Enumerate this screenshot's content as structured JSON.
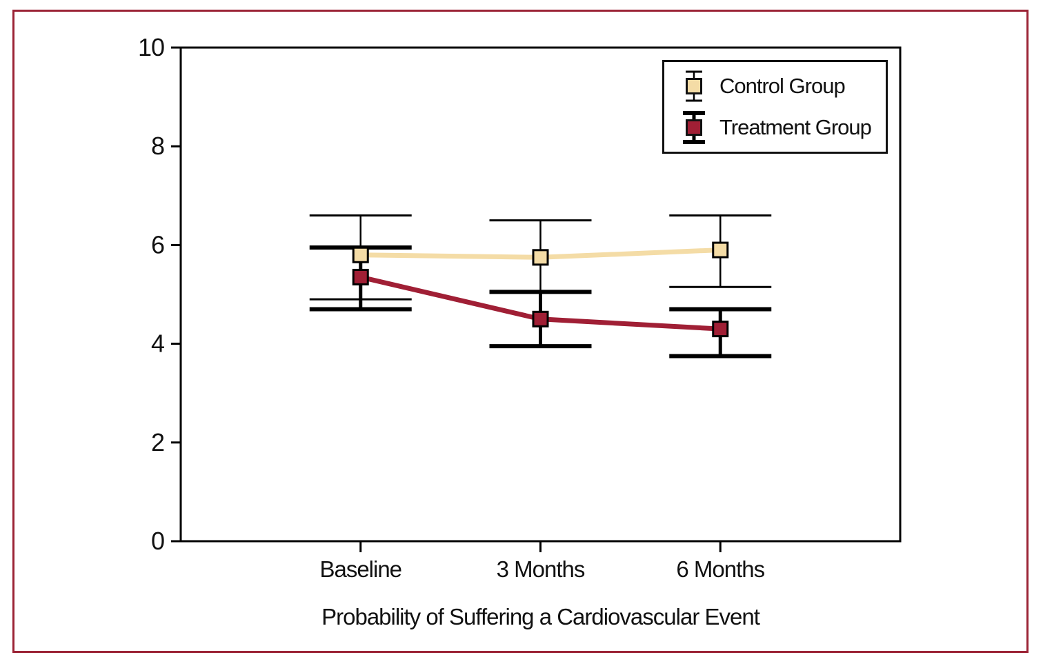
{
  "figure": {
    "frame_color": "#9B2335",
    "background_color": "#FFFFFF",
    "axis_color": "#000000"
  },
  "chart_data": {
    "type": "line",
    "title": "",
    "xlabel": "Probability of Suffering a Cardiovascular Event",
    "ylabel": "",
    "ylim": [
      0,
      10
    ],
    "yticks": [
      0,
      2,
      4,
      6,
      8,
      10
    ],
    "categories": [
      "Baseline",
      "3 Months",
      "6 Months"
    ],
    "grid": "off",
    "legend_position": "top-right",
    "error_bar_color": "#000000",
    "series": [
      {
        "name": "Control Group",
        "values": [
          5.8,
          5.75,
          5.9
        ],
        "error_low": [
          4.9,
          5.05,
          5.15
        ],
        "error_high": [
          6.6,
          6.5,
          6.6
        ],
        "color": "#F4DCA6",
        "marker": "square",
        "error_bar_thickness": "thin"
      },
      {
        "name": "Treatment Group",
        "values": [
          5.35,
          4.5,
          4.3
        ],
        "error_low": [
          4.7,
          3.95,
          3.75
        ],
        "error_high": [
          5.95,
          5.05,
          4.7
        ],
        "color": "#A01F35",
        "marker": "square",
        "error_bar_thickness": "thick"
      }
    ]
  }
}
